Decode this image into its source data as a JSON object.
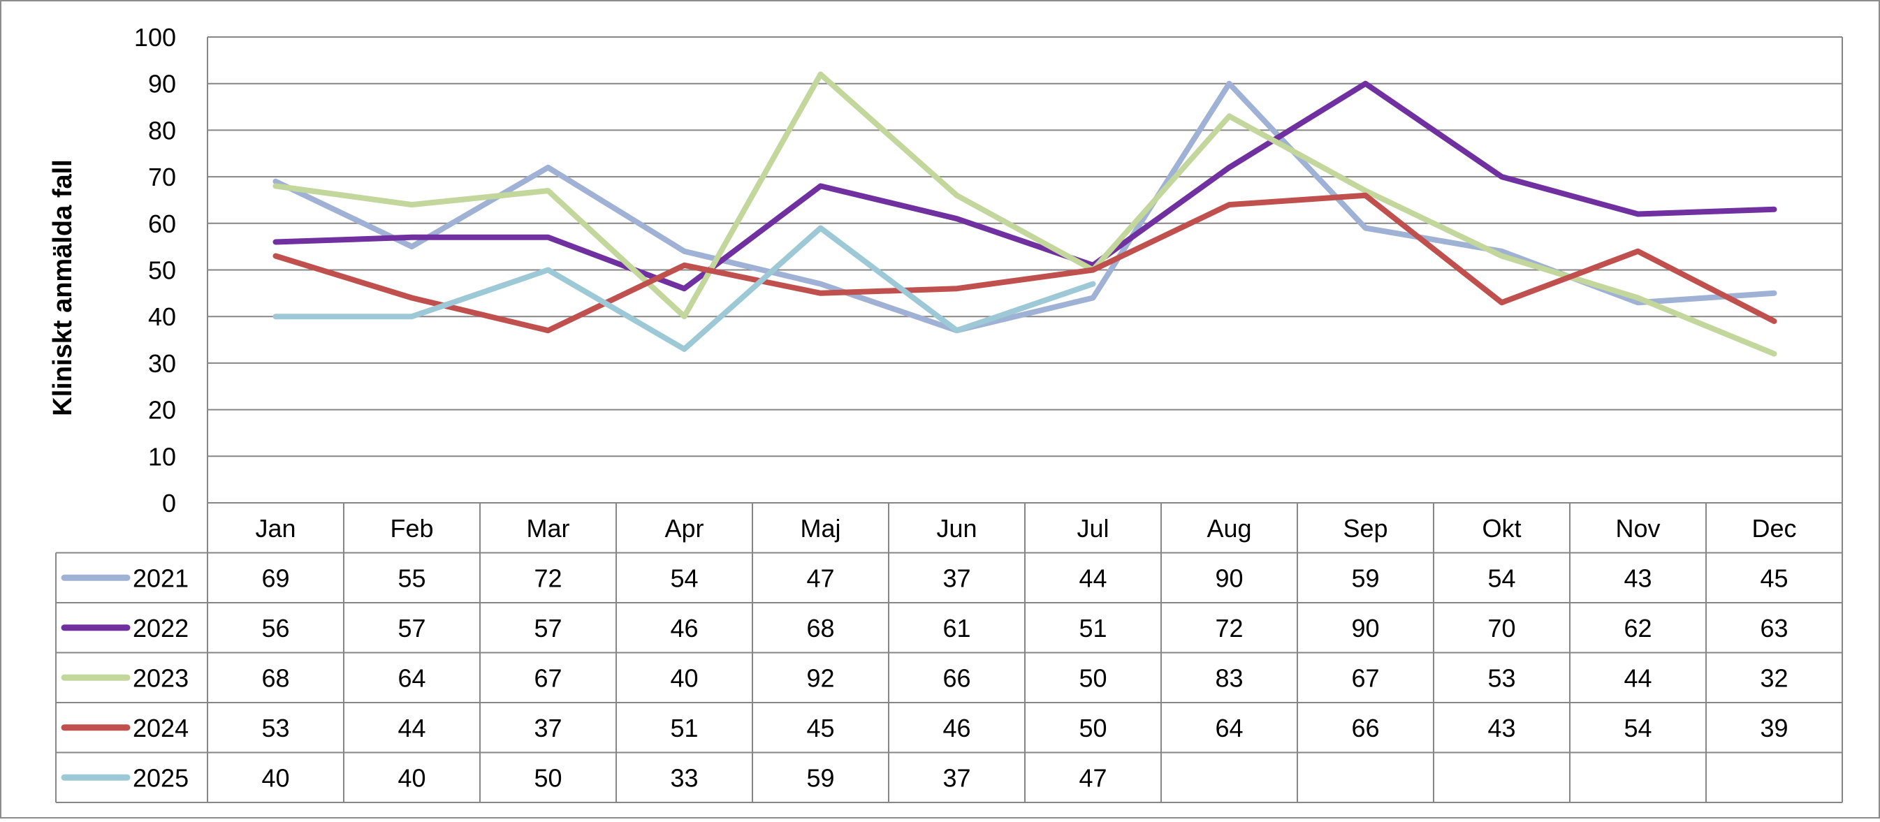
{
  "chart_data": {
    "type": "line",
    "title": "",
    "xlabel": "",
    "ylabel": "Kliniskt anmälda fall",
    "ylim": [
      0,
      100
    ],
    "yticks": [
      0,
      10,
      20,
      30,
      40,
      50,
      60,
      70,
      80,
      90,
      100
    ],
    "grid": true,
    "legend": "data-table-left",
    "categories": [
      "Jan",
      "Feb",
      "Mar",
      "Apr",
      "Maj",
      "Jun",
      "Jul",
      "Aug",
      "Sep",
      "Okt",
      "Nov",
      "Dec"
    ],
    "series": [
      {
        "name": "2021",
        "color": "#9fb1d4",
        "values": [
          69,
          55,
          72,
          54,
          47,
          37,
          44,
          90,
          59,
          54,
          43,
          45
        ]
      },
      {
        "name": "2022",
        "color": "#7030a0",
        "values": [
          56,
          57,
          57,
          46,
          68,
          61,
          51,
          72,
          90,
          70,
          62,
          63
        ]
      },
      {
        "name": "2023",
        "color": "#c3d69b",
        "values": [
          68,
          64,
          67,
          40,
          92,
          66,
          50,
          83,
          67,
          53,
          44,
          32
        ]
      },
      {
        "name": "2024",
        "color": "#c0504d",
        "values": [
          53,
          44,
          37,
          51,
          45,
          46,
          50,
          64,
          66,
          43,
          54,
          39
        ]
      },
      {
        "name": "2025",
        "color": "#9dc9d7",
        "values": [
          40,
          40,
          50,
          33,
          59,
          37,
          47,
          null,
          null,
          null,
          null,
          null
        ]
      }
    ]
  }
}
